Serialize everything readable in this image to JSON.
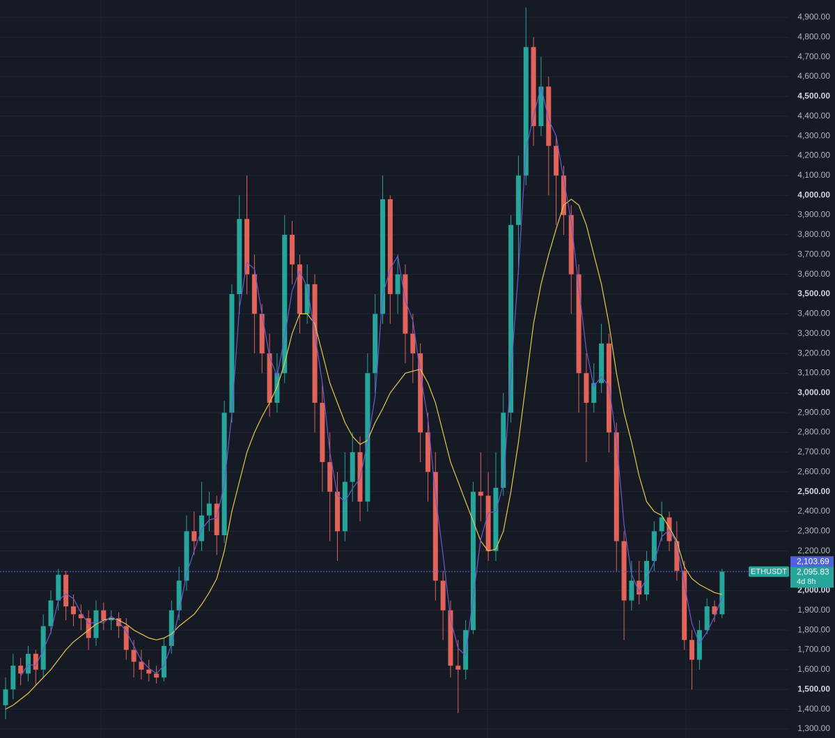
{
  "chart_data": {
    "type": "candlestick",
    "symbol": "ETHUSDT",
    "countdown": "4d 8h",
    "up_color": "#26a69a",
    "down_color": "#e2635a",
    "open": [
      1420,
      1500,
      1620,
      1580,
      1680,
      1600,
      1820,
      1950,
      2080,
      1920,
      1880,
      1860,
      1760,
      1900,
      1850,
      1860,
      1820,
      1700,
      1640,
      1600,
      1580,
      1560,
      1720,
      1900,
      2050,
      2300,
      2250,
      2380,
      2440,
      2280,
      2900,
      3500,
      3880,
      3600,
      3400,
      3200,
      2950,
      3100,
      3800,
      3650,
      3400,
      3550,
      2950,
      2650,
      2500,
      2300,
      2550,
      2700,
      2450,
      3100,
      3400,
      3980,
      3500,
      3600,
      3300,
      3200,
      2800,
      2600,
      2050,
      1900,
      1620,
      1600,
      1800,
      2500,
      2480,
      2200,
      2520,
      2900,
      3850,
      4100,
      4750,
      4350,
      4550,
      4250,
      4100,
      3900,
      3600,
      3100,
      2950,
      3050,
      3250,
      2800,
      2250,
      1950,
      2050,
      1980,
      2150,
      2300,
      2370,
      2250,
      2100,
      1750,
      1650,
      1800,
      1920,
      1880
    ],
    "high": [
      1560,
      1680,
      1660,
      1720,
      1700,
      1880,
      2000,
      2110,
      2100,
      1980,
      1930,
      1900,
      1950,
      1940,
      1900,
      1890,
      1860,
      1750,
      1700,
      1650,
      1620,
      1760,
      1950,
      2120,
      2380,
      2400,
      2550,
      2500,
      2480,
      2960,
      3550,
      4000,
      4100,
      3700,
      3450,
      3300,
      3200,
      3900,
      3870,
      3700,
      3650,
      3600,
      3050,
      2800,
      2600,
      2700,
      2800,
      2780,
      3200,
      3500,
      4100,
      4000,
      3700,
      3650,
      3400,
      3250,
      2900,
      2700,
      2100,
      1950,
      1750,
      1850,
      2550,
      2700,
      2600,
      2700,
      3000,
      3900,
      4200,
      4950,
      4800,
      4700,
      4600,
      4300,
      4150,
      3950,
      3650,
      3200,
      3150,
      3350,
      3300,
      2850,
      2300,
      2150,
      2150,
      2200,
      2350,
      2450,
      2400,
      2350,
      2150,
      1800,
      1850,
      1960,
      1950,
      2110
    ],
    "low": [
      1350,
      1450,
      1520,
      1540,
      1520,
      1560,
      1780,
      1900,
      1850,
      1820,
      1800,
      1700,
      1720,
      1800,
      1800,
      1760,
      1650,
      1560,
      1550,
      1540,
      1530,
      1540,
      1680,
      1850,
      2000,
      2180,
      2200,
      2300,
      2180,
      2240,
      2850,
      3400,
      3500,
      3200,
      3100,
      2880,
      2900,
      3050,
      3550,
      3300,
      3350,
      2800,
      2500,
      2250,
      2150,
      2250,
      2450,
      2350,
      2400,
      3000,
      3350,
      3350,
      3400,
      3150,
      3050,
      2650,
      2450,
      1950,
      1750,
      1560,
      1380,
      1550,
      1780,
      2350,
      2150,
      2150,
      2480,
      2850,
      3600,
      4050,
      4250,
      4300,
      4000,
      3850,
      3800,
      3400,
      2900,
      2650,
      2900,
      3000,
      2700,
      2100,
      1750,
      1900,
      1930,
      1950,
      2100,
      2250,
      2200,
      2050,
      1700,
      1500,
      1600,
      1780,
      1840,
      1860
    ],
    "close": [
      1500,
      1620,
      1580,
      1680,
      1600,
      1820,
      1950,
      2080,
      1920,
      1880,
      1860,
      1760,
      1900,
      1850,
      1860,
      1820,
      1700,
      1640,
      1600,
      1580,
      1560,
      1720,
      1900,
      2050,
      2300,
      2250,
      2380,
      2440,
      2280,
      2900,
      3500,
      3880,
      3600,
      3400,
      3200,
      2950,
      3100,
      3800,
      3650,
      3400,
      3550,
      2950,
      2650,
      2500,
      2300,
      2550,
      2700,
      2450,
      3100,
      3400,
      3980,
      3500,
      3600,
      3300,
      3200,
      2800,
      2600,
      2050,
      1900,
      1620,
      1600,
      1800,
      2500,
      2480,
      2200,
      2520,
      2900,
      3850,
      4100,
      4750,
      4350,
      4550,
      4250,
      4100,
      3900,
      3600,
      3100,
      2950,
      3050,
      3250,
      2800,
      2250,
      1950,
      2050,
      1980,
      2150,
      2300,
      2370,
      2250,
      2100,
      1750,
      1650,
      1800,
      1920,
      1880,
      2095.83
    ],
    "lines": [
      {
        "color": "#e6c84a",
        "values": [
          1400,
          1420,
          1450,
          1480,
          1520,
          1560,
          1600,
          1650,
          1700,
          1740,
          1770,
          1800,
          1830,
          1850,
          1860,
          1850,
          1830,
          1800,
          1780,
          1760,
          1750,
          1760,
          1780,
          1820,
          1850,
          1880,
          1930,
          1990,
          2060,
          2200,
          2400,
          2550,
          2700,
          2800,
          2880,
          2950,
          3030,
          3150,
          3300,
          3400,
          3400,
          3350,
          3200,
          3050,
          2950,
          2850,
          2780,
          2740,
          2760,
          2850,
          2920,
          3000,
          3050,
          3100,
          3110,
          3120,
          3050,
          2950,
          2800,
          2650,
          2550,
          2450,
          2350,
          2250,
          2200,
          2210,
          2300,
          2500,
          2750,
          3050,
          3350,
          3550,
          3700,
          3830,
          3950,
          3980,
          3950,
          3850,
          3700,
          3550,
          3350,
          3100,
          2900,
          2750,
          2580,
          2450,
          2400,
          2380,
          2320,
          2250,
          2120,
          2060,
          2030,
          2010,
          1990,
          1980
        ]
      },
      {
        "color": "#6a5acd",
        "values": [
          null,
          null,
          1567,
          1627,
          1620,
          1700,
          1790,
          1950,
          1983,
          1960,
          1887,
          1833,
          1840,
          1837,
          1870,
          1843,
          1793,
          1720,
          1647,
          1607,
          1580,
          1620,
          1727,
          1890,
          2083,
          2200,
          2310,
          2357,
          2367,
          2540,
          2893,
          3427,
          3660,
          3627,
          3400,
          3183,
          3083,
          3283,
          3517,
          3617,
          3533,
          3300,
          3050,
          2700,
          2483,
          2450,
          2517,
          2567,
          2750,
          2983,
          3493,
          3627,
          3693,
          3467,
          3367,
          3100,
          2867,
          2483,
          2183,
          1857,
          1707,
          1673,
          1967,
          2260,
          2393,
          2400,
          2540,
          3090,
          3617,
          4233,
          4400,
          4550,
          4383,
          4300,
          4083,
          3867,
          3533,
          3217,
          3033,
          3083,
          3033,
          2767,
          2333,
          2083,
          1993,
          2060,
          2143,
          2273,
          2307,
          2240,
          2033,
          1833,
          1733,
          1790,
          1867,
          1965
        ]
      }
    ],
    "markers": [
      {
        "value": 2103.69,
        "label": "2,103.69",
        "color": "#4f63d8"
      },
      {
        "value": 2095.83,
        "label": "2,095.83",
        "color": "#26a69a"
      }
    ],
    "ylim": [
      1254,
      4988
    ],
    "yticks": [
      {
        "value": 1300,
        "label": "1,300.00"
      },
      {
        "value": 1400,
        "label": "1,400.00"
      },
      {
        "value": 1500,
        "label": "1,500.00"
      },
      {
        "value": 1600,
        "label": "1,600.00"
      },
      {
        "value": 1700,
        "label": "1,700.00"
      },
      {
        "value": 1800,
        "label": "1,800.00"
      },
      {
        "value": 1900,
        "label": "1,900.00"
      },
      {
        "value": 2000,
        "label": "2,000.00"
      },
      {
        "value": 2100,
        "label": "2,100.00"
      },
      {
        "value": 2200,
        "label": "2,200.00"
      },
      {
        "value": 2300,
        "label": "2,300.00"
      },
      {
        "value": 2400,
        "label": "2,400.00"
      },
      {
        "value": 2500,
        "label": "2,500.00"
      },
      {
        "value": 2600,
        "label": "2,600.00"
      },
      {
        "value": 2700,
        "label": "2,700.00"
      },
      {
        "value": 2800,
        "label": "2,800.00"
      },
      {
        "value": 2900,
        "label": "2,900.00"
      },
      {
        "value": 3000,
        "label": "3,000.00"
      },
      {
        "value": 3100,
        "label": "3,100.00"
      },
      {
        "value": 3200,
        "label": "3,200.00"
      },
      {
        "value": 3300,
        "label": "3,300.00"
      },
      {
        "value": 3400,
        "label": "3,400.00"
      },
      {
        "value": 3500,
        "label": "3,500.00"
      },
      {
        "value": 3600,
        "label": "3,600.00"
      },
      {
        "value": 3700,
        "label": "3,700.00"
      },
      {
        "value": 3800,
        "label": "3,800.00"
      },
      {
        "value": 3900,
        "label": "3,900.00"
      },
      {
        "value": 4000,
        "label": "4,000.00"
      },
      {
        "value": 4100,
        "label": "4,100.00"
      },
      {
        "value": 4200,
        "label": "4,200.00"
      },
      {
        "value": 4300,
        "label": "4,300.00"
      },
      {
        "value": 4400,
        "label": "4,400.00"
      },
      {
        "value": 4500,
        "label": "4,500.00"
      },
      {
        "value": 4600,
        "label": "4,600.00"
      },
      {
        "value": 4700,
        "label": "4,700.00"
      },
      {
        "value": 4800,
        "label": "4,800.00"
      },
      {
        "value": 4900,
        "label": "4,900.00"
      }
    ],
    "grid": true
  }
}
